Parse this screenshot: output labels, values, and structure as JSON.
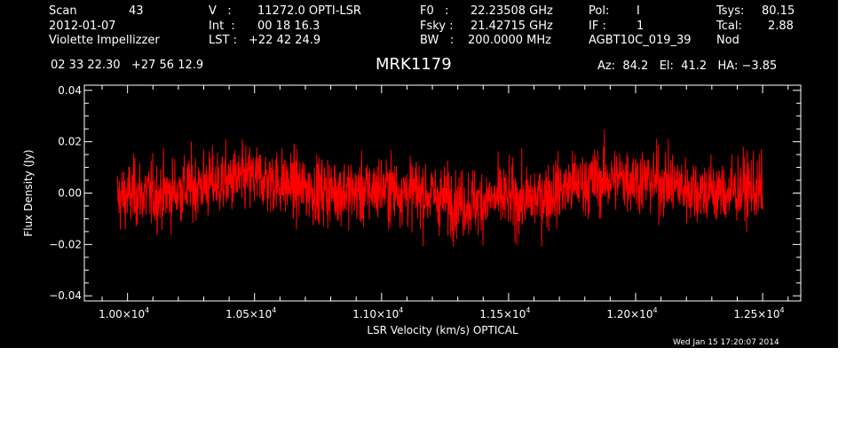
{
  "header": {
    "scan_label": "Scan",
    "scan_value": "43",
    "date": "2012-01-07",
    "observer": "Violette Impellizzer",
    "v_label": "V   :",
    "v_value": "11272.0 OPTI-LSR",
    "int_label": "Int  :",
    "int_value": "00 18 16.3",
    "lst_label": "LST :",
    "lst_value": "+22 42 24.9",
    "f0_label": "F0   :",
    "f0_value": "22.23508 GHz",
    "fsky_label": "Fsky :",
    "fsky_value": "21.42715 GHz",
    "bw_label": "BW   :",
    "bw_value": "200.0000 MHz",
    "pol_label": "Pol:",
    "pol_value": "I",
    "if_label": "IF :",
    "if_value": "1",
    "project": "AGBT10C_019_39",
    "tsys_label": "Tsys:",
    "tsys_value": "80.15",
    "tcal_label": "Tcal:",
    "tcal_value": "2.88",
    "mode": "Nod",
    "coords": "02 33 22.30   +27 56 12.9",
    "source": "MRK1179",
    "az_el_ha": "Az:  84.2   El:  41.2   HA: −3.85",
    "timestamp": "Wed Jan 15 17:20:07 2014"
  },
  "chart_data": {
    "type": "line",
    "title": "MRK1179",
    "xlabel": "LSR Velocity (km/s) OPTICAL",
    "ylabel": "Flux Density (Jy)",
    "xlim": [
      9830,
      12650
    ],
    "ylim": [
      -0.042,
      0.042
    ],
    "x_ticks": [
      10000,
      10500,
      11000,
      11500,
      12000,
      12500
    ],
    "x_tick_labels": [
      {
        "mant": "1.00×10",
        "exp": "4"
      },
      {
        "mant": "1.05×10",
        "exp": "4"
      },
      {
        "mant": "1.10×10",
        "exp": "4"
      },
      {
        "mant": "1.15×10",
        "exp": "4"
      },
      {
        "mant": "1.20×10",
        "exp": "4"
      },
      {
        "mant": "1.25×10",
        "exp": "4"
      }
    ],
    "y_ticks": [
      -0.04,
      -0.02,
      0.0,
      0.02,
      0.04
    ],
    "y_tick_labels": [
      "−0.04",
      "−0.02",
      "0.00",
      "0.02",
      "0.04"
    ],
    "series": [
      {
        "color": "#ff0000",
        "x": [
          9960,
          10040,
          10120,
          10200,
          10280,
          10360,
          10440,
          10520,
          10600,
          10680,
          10760,
          10840,
          10920,
          11000,
          11080,
          11160,
          11240,
          11320,
          11400,
          11480,
          11560,
          11640,
          11720,
          11800,
          11880,
          11960,
          12040,
          12120,
          12200,
          12280,
          12360,
          12440,
          12500
        ],
        "y": [
          -0.002,
          0.0,
          -0.001,
          0.001,
          0.003,
          0.004,
          0.005,
          0.006,
          0.004,
          0.002,
          0.001,
          0.001,
          0.0,
          0.002,
          0.001,
          0.0,
          -0.002,
          -0.004,
          -0.003,
          -0.002,
          -0.003,
          -0.001,
          0.002,
          0.004,
          0.005,
          0.006,
          0.005,
          0.004,
          0.002,
          0.001,
          0.0,
          0.002,
          0.001
        ]
      }
    ],
    "noise_rms": 0.009,
    "grid": false,
    "legend": "none"
  },
  "colors": {
    "background": "#000000",
    "foreground": "#ffffff",
    "trace": "#ff0000"
  }
}
